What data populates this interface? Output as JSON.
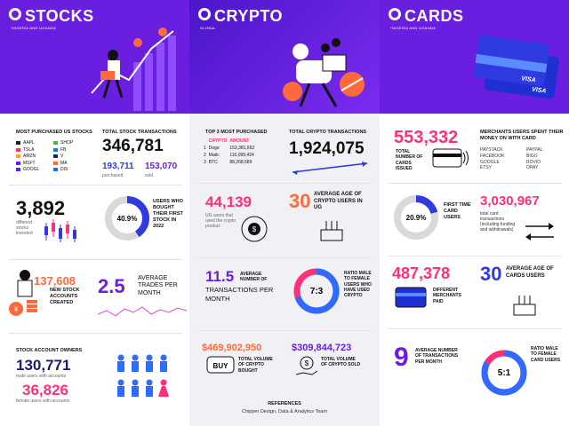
{
  "stocks": {
    "title": "STOCKS",
    "subtitle": "*NIGERIA AND UGANDA",
    "most_purchased_heading": "MOST PURCHASED US STOCKS",
    "tickers_left": [
      "AAPL",
      "TSLA",
      "AMZN",
      "MSFT",
      "GOOGL"
    ],
    "tickers_right": [
      "SHOP",
      "FB",
      "V",
      "MA",
      "DIS"
    ],
    "total_transactions_heading": "TOTAL STOCK TRANSACTIONS",
    "total_transactions": "346,781",
    "purchased_value": "193,711",
    "purchased_label": "purchased",
    "sold_value": "153,070",
    "sold_label": "sold",
    "investors_value": "3,892",
    "investors_label": "different stocks invested",
    "first_stock_pct": "40.9%",
    "first_stock_label": "USERS WHO BOUGHT THEIR FIRST STOCK IN 2022",
    "first_stock_fraction": 0.409,
    "new_accounts_value": "137,608",
    "new_accounts_label": "NEW STOCK ACCOUNTS CREATED",
    "avg_trades_value": "2.5",
    "avg_trades_label": "AVERAGE TRADES PER MONTH",
    "owners_heading": "STOCK ACCOUNT OWNERS",
    "male_value": "130,771",
    "male_label": "male users with accounts",
    "female_value": "36,826",
    "female_label": "female users with accounts"
  },
  "crypto": {
    "title": "CRYPTO",
    "subtitle": "GLOBAL",
    "top3_heading": "TOP 3 MOST PURCHASED",
    "col_crypto": "CRYPTO",
    "col_amount": "AMOUNT",
    "rows": [
      {
        "rank": "1",
        "name": "Doge",
        "amount": "153,381,662"
      },
      {
        "rank": "2",
        "name": "Matic",
        "amount": "110,099,424"
      },
      {
        "rank": "3",
        "name": "BTC",
        "amount": "88,268,589"
      }
    ],
    "total_heading": "TOTAL CRYPTO TRANSACTIONS",
    "total_value": "1,924,075",
    "ug_users_value": "44,139",
    "ug_users_label": "UG users that used the crypto product",
    "avg_age_value": "30",
    "avg_age_label": "AVERAGE AGE OF CRYPTO USERS IN UG",
    "avg_tx_value": "11.5",
    "avg_tx_small": "AVERAGE NUMBER OF",
    "avg_tx_label": "TRANSACTIONS PER MONTH",
    "ratio_value": "7:3",
    "ratio_label": "RATIO MALE TO FEMALE USERS WHO HAVE USED CRYPTO",
    "ratio_fraction": 0.7,
    "bought_value": "$469,902,950",
    "bought_label": "TOTAL VOLUME OF CRYPTO BOUGHT",
    "buy_tag": "BUY",
    "sold_value": "$309,844,723",
    "sold_label": "TOTAL VOLUME OF CRYPTO SOLD",
    "references_heading": "REFERENCES",
    "references_text": "Chipper Design, Data & Analytics Team"
  },
  "cards": {
    "title": "CARDS",
    "subtitle": "*NIGERIA AND UGANDA",
    "card_brand": "VISA",
    "issued_value": "553,332",
    "issued_label": "TOTAL NUMBER OF CARDS ISSUED",
    "merchants_heading": "MERCHANTS USERS SPENT THEIR MONEY ON WITH CARD",
    "merchants_left": [
      "PAYSTACK",
      "FACEBOOK",
      "GOOGLE",
      "ETSY"
    ],
    "merchants_right": [
      "PAYPAL",
      "BIGO",
      "ROVIO",
      "OPAY"
    ],
    "first_time_pct": "20.9%",
    "first_time_label": "FIRST TIME CARD USERS",
    "first_time_fraction": 0.209,
    "total_tx_value": "3,030,967",
    "total_tx_label": "total card transactions (including funding and withdrawals)",
    "merchants_paid_value": "487,378",
    "merchants_paid_label": "DIFFERENT MERCHANTS PAID",
    "avg_age_value": "30",
    "avg_age_label": "AVERAGE AGE OF CARDS USERS",
    "avg_tx_value": "9",
    "avg_tx_label": "AVERAGE NUMBER OF TRANSACTIONS PER MONTH",
    "ratio_value": "5:1",
    "ratio_label": "RATIO MALE TO FEMALE CARD USERS",
    "ratio_fraction": 0.833
  },
  "colors": {
    "purple": "#6a1ee0",
    "pink": "#ff2f7a",
    "orange": "#ff6a3d",
    "blue": "#2f3be0",
    "gray": "#d9d9d9"
  },
  "ticker_colors": [
    "#222",
    "#ff2f7a",
    "#f5a623",
    "#6a1ee0",
    "#2f3be0",
    "#4caf50",
    "#1877f2",
    "#1a1f71",
    "#ff6a3d",
    "#1a73e8"
  ]
}
